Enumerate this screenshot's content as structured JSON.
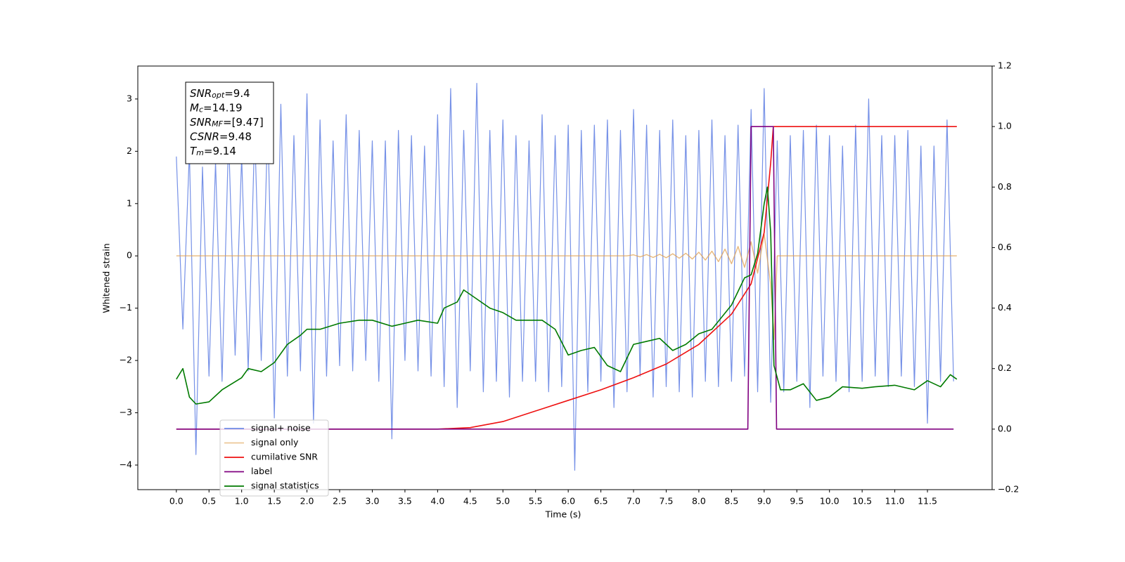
{
  "chart_data": {
    "type": "line",
    "xlabel": "Time (s)",
    "ylabel": "Whitened strain",
    "xlim": [
      -0.59,
      12.49
    ],
    "ylim": [
      -4.47,
      3.63
    ],
    "y2lim": [
      -0.2,
      1.2
    ],
    "xticks": [
      {
        "value": 0,
        "label": "0.0"
      },
      0.5,
      {
        "value": 1,
        "label": "1.0"
      },
      1.5,
      {
        "value": 2,
        "label": "2.0"
      },
      2.5,
      {
        "value": 3,
        "label": "3.0"
      },
      3.5,
      {
        "value": 4,
        "label": "4.0"
      },
      4.5,
      {
        "value": 5,
        "label": "5.0"
      },
      5.5,
      {
        "value": 6,
        "label": "6.0"
      },
      6.5,
      {
        "value": 7,
        "label": "7.0"
      },
      7.5,
      {
        "value": 8,
        "label": "8.0"
      },
      8.5,
      {
        "value": 9,
        "label": "9.0"
      },
      9.5,
      {
        "value": 10,
        "label": "10.0"
      },
      10.5,
      {
        "value": 11,
        "label": "11.0"
      },
      11.5
    ],
    "yticks": [
      {
        "value": -4,
        "label": "−4"
      },
      {
        "value": -3,
        "label": "−3"
      },
      {
        "value": -2,
        "label": "−2"
      },
      {
        "value": -1,
        "label": "−1"
      },
      0,
      1,
      2,
      3
    ],
    "y2ticks": [
      {
        "value": -0.2,
        "label": "−0.2"
      },
      {
        "value": 0,
        "label": "0.0"
      },
      0.2,
      0.4,
      0.6,
      0.8,
      {
        "value": 1,
        "label": "1.0"
      },
      1.2
    ],
    "legend": "lower left",
    "annotations": [
      {
        "symbol": "SNR",
        "subscript": "opt",
        "text": "=9.4"
      },
      {
        "symbol": "M",
        "subscript": "c",
        "text": "=14.19"
      },
      {
        "symbol": "SNR",
        "subscript": "MF",
        "text": "=[9.47]"
      },
      {
        "symbol": "CSNR",
        "text": "=9.48"
      },
      {
        "symbol": "T",
        "subscript": "m",
        "text": "=9.14"
      }
    ],
    "series": [
      {
        "name": "signal+ noise",
        "color": "#6f8be6",
        "axis": "y",
        "x": [
          0.0,
          0.1,
          0.2,
          0.3,
          0.4,
          0.5,
          0.6,
          0.7,
          0.8,
          0.9,
          1.0,
          1.1,
          1.2,
          1.3,
          1.4,
          1.5,
          1.6,
          1.7,
          1.8,
          1.9,
          2.0,
          2.1,
          2.2,
          2.3,
          2.4,
          2.5,
          2.6,
          2.7,
          2.8,
          2.9,
          3.0,
          3.1,
          3.2,
          3.3,
          3.4,
          3.5,
          3.6,
          3.7,
          3.8,
          3.9,
          4.0,
          4.1,
          4.2,
          4.3,
          4.4,
          4.5,
          4.6,
          4.7,
          4.8,
          4.9,
          5.0,
          5.1,
          5.2,
          5.3,
          5.4,
          5.5,
          5.6,
          5.7,
          5.8,
          5.9,
          6.0,
          6.1,
          6.2,
          6.3,
          6.4,
          6.5,
          6.6,
          6.7,
          6.8,
          6.9,
          7.0,
          7.1,
          7.2,
          7.3,
          7.4,
          7.5,
          7.6,
          7.7,
          7.8,
          7.9,
          8.0,
          8.1,
          8.2,
          8.3,
          8.4,
          8.5,
          8.6,
          8.7,
          8.8,
          8.9,
          9.0,
          9.1,
          9.2,
          9.3,
          9.4,
          9.5,
          9.6,
          9.7,
          9.8,
          9.9,
          10.0,
          10.1,
          10.2,
          10.3,
          10.4,
          10.5,
          10.6,
          10.7,
          10.8,
          10.9,
          11.0,
          11.1,
          11.2,
          11.3,
          11.4,
          11.5,
          11.6,
          11.7,
          11.8,
          11.9
        ],
        "values": [
          1.9,
          -1.4,
          2.0,
          -3.8,
          1.7,
          -2.3,
          1.8,
          -2.4,
          2.3,
          -1.9,
          1.9,
          -2.2,
          2.4,
          -2.0,
          2.6,
          -3.1,
          2.9,
          -2.3,
          2.3,
          -2.2,
          3.1,
          -3.2,
          2.6,
          -2.3,
          2.2,
          -2.1,
          2.7,
          -2.2,
          2.4,
          -2.0,
          2.2,
          -2.4,
          2.2,
          -3.5,
          2.4,
          -2.0,
          2.3,
          -2.2,
          2.1,
          -2.3,
          2.7,
          -2.5,
          3.2,
          -2.9,
          2.4,
          -2.2,
          3.3,
          -2.6,
          2.4,
          -2.4,
          2.6,
          -2.7,
          2.3,
          -2.4,
          2.2,
          -2.4,
          2.7,
          -2.6,
          2.3,
          -2.5,
          2.5,
          -4.1,
          2.4,
          -2.6,
          2.5,
          -2.4,
          2.6,
          -2.9,
          2.4,
          -2.6,
          2.8,
          -2.3,
          2.5,
          -2.7,
          2.4,
          -2.5,
          2.6,
          -2.6,
          2.3,
          -2.7,
          2.4,
          -2.4,
          2.6,
          -2.5,
          2.3,
          -2.4,
          2.5,
          -2.3,
          2.8,
          -2.6,
          3.2,
          -2.8,
          2.2,
          -2.6,
          2.3,
          -2.4,
          2.4,
          -2.9,
          2.5,
          -2.3,
          2.3,
          -2.4,
          2.1,
          -2.6,
          2.5,
          -2.4,
          3.0,
          -2.3,
          2.3,
          -2.5,
          2.3,
          -2.3,
          2.4,
          -2.5,
          2.1,
          -3.2,
          2.1,
          -2.4,
          2.6,
          -2.4
        ]
      },
      {
        "name": "signal only",
        "color": "#e0a050",
        "axis": "y",
        "x": [
          0,
          6.9,
          7.0,
          7.1,
          7.2,
          7.3,
          7.4,
          7.5,
          7.6,
          7.7,
          7.8,
          7.9,
          8.0,
          8.1,
          8.2,
          8.3,
          8.4,
          8.5,
          8.6,
          8.7,
          8.8,
          8.9,
          9.0,
          9.1,
          9.15,
          9.2,
          11.95
        ],
        "values": [
          0,
          0,
          0.02,
          -0.02,
          0.025,
          -0.03,
          0.03,
          -0.035,
          0.04,
          -0.045,
          0.05,
          -0.06,
          0.07,
          -0.08,
          0.09,
          -0.11,
          0.13,
          -0.15,
          0.18,
          -0.22,
          0.27,
          -0.33,
          0.42,
          -0.55,
          -1.6,
          0,
          0
        ]
      },
      {
        "name": "cumilative SNR",
        "color": "#ee1111",
        "axis": "y2",
        "x": [
          0,
          4.0,
          4.5,
          5.0,
          5.5,
          6.0,
          6.5,
          7.0,
          7.5,
          8.0,
          8.5,
          8.8,
          9.0,
          9.1,
          9.14,
          11.95
        ],
        "values": [
          0,
          0,
          0.005,
          0.025,
          0.06,
          0.095,
          0.13,
          0.17,
          0.215,
          0.28,
          0.38,
          0.48,
          0.65,
          0.88,
          1.0,
          1.0
        ]
      },
      {
        "name": "label",
        "color": "#800080",
        "axis": "y2",
        "x": [
          0,
          8.75,
          8.8,
          9.14,
          9.19,
          11.9
        ],
        "values": [
          0,
          0,
          1,
          1,
          0,
          0
        ]
      },
      {
        "name": "signal statistics",
        "color": "#007a00",
        "axis": "y2",
        "x": [
          0.0,
          0.1,
          0.2,
          0.3,
          0.5,
          0.7,
          1.0,
          1.1,
          1.3,
          1.5,
          1.7,
          1.9,
          2.0,
          2.2,
          2.5,
          2.8,
          3.0,
          3.3,
          3.5,
          3.7,
          4.0,
          4.1,
          4.3,
          4.4,
          4.6,
          4.8,
          5.0,
          5.2,
          5.6,
          5.8,
          6.0,
          6.2,
          6.4,
          6.6,
          6.8,
          7.0,
          7.2,
          7.4,
          7.6,
          7.8,
          8.0,
          8.2,
          8.5,
          8.7,
          8.8,
          8.9,
          9.0,
          9.05,
          9.1,
          9.15,
          9.25,
          9.4,
          9.6,
          9.8,
          10.0,
          10.2,
          10.5,
          10.7,
          11.0,
          11.3,
          11.5,
          11.7,
          11.85,
          11.95
        ],
        "values": [
          0.165,
          0.2,
          0.106,
          0.083,
          0.09,
          0.13,
          0.17,
          0.2,
          0.19,
          0.22,
          0.28,
          0.31,
          0.33,
          0.33,
          0.35,
          0.36,
          0.36,
          0.34,
          0.35,
          0.36,
          0.35,
          0.4,
          0.42,
          0.46,
          0.43,
          0.4,
          0.385,
          0.36,
          0.36,
          0.33,
          0.245,
          0.26,
          0.27,
          0.21,
          0.19,
          0.28,
          0.29,
          0.3,
          0.26,
          0.28,
          0.315,
          0.33,
          0.41,
          0.5,
          0.51,
          0.58,
          0.745,
          0.8,
          0.65,
          0.21,
          0.13,
          0.13,
          0.15,
          0.095,
          0.106,
          0.14,
          0.135,
          0.14,
          0.145,
          0.13,
          0.16,
          0.14,
          0.18,
          0.165
        ]
      }
    ]
  }
}
